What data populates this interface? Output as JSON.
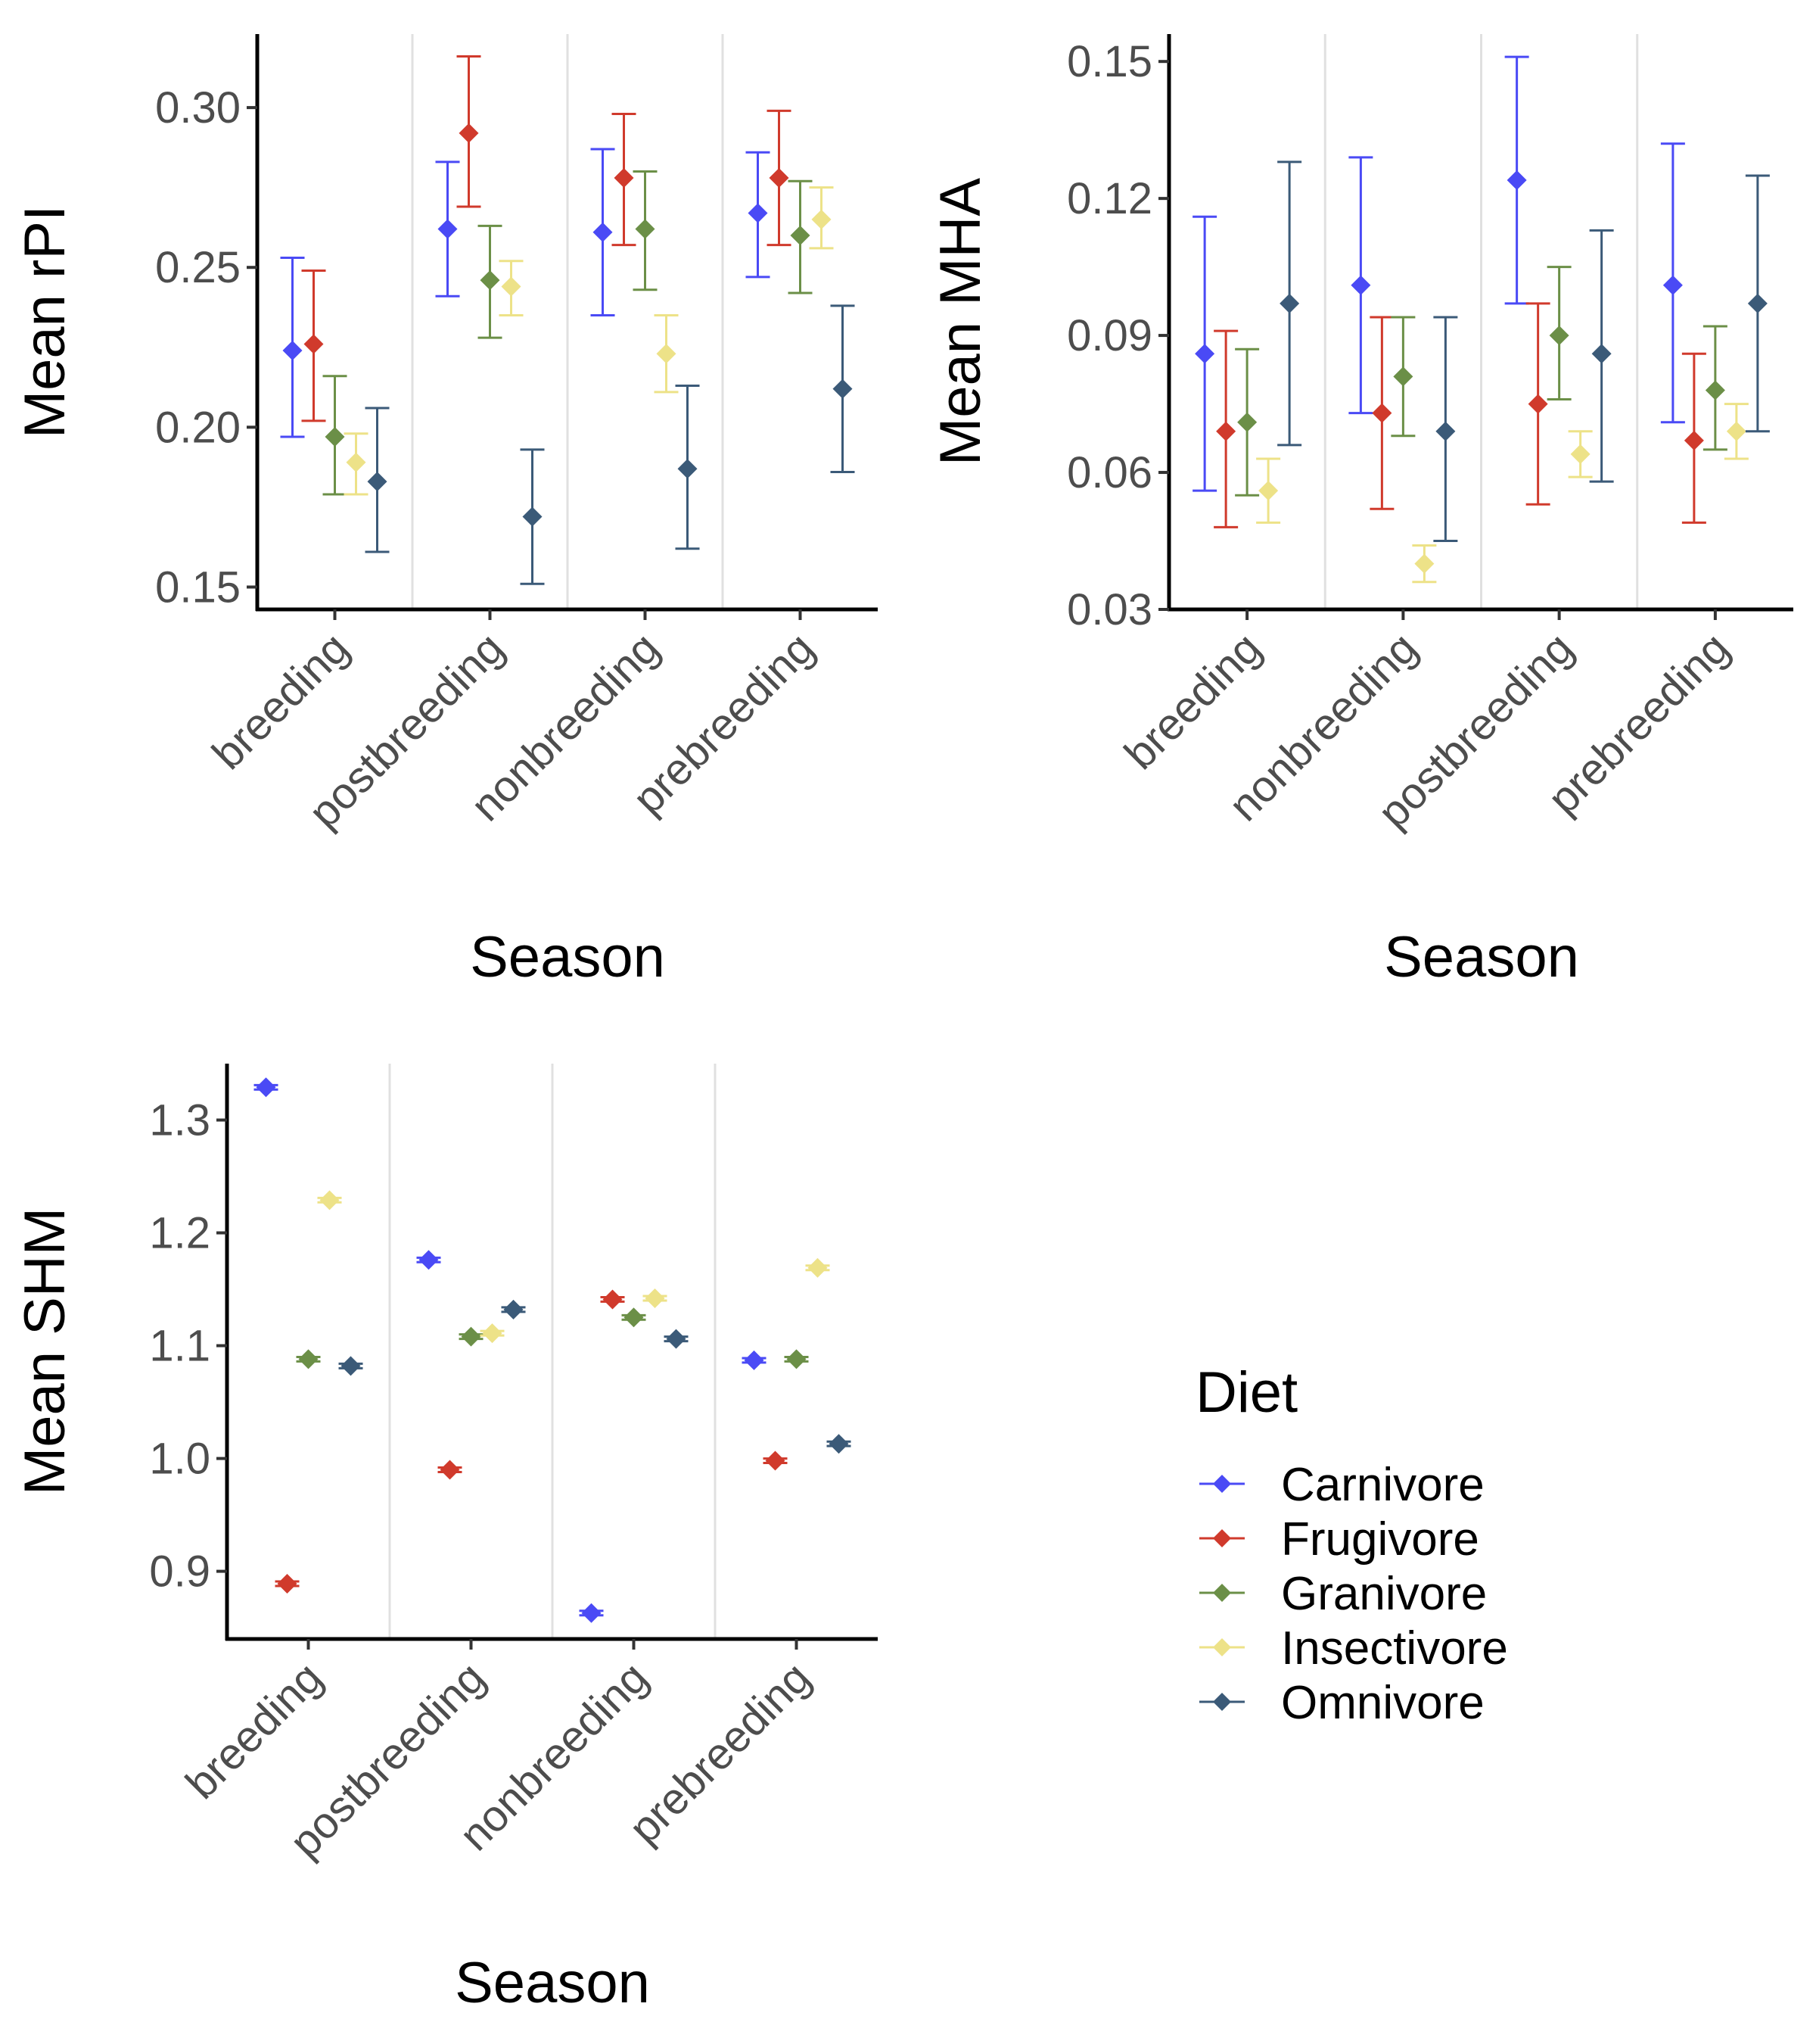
{
  "legend": {
    "title": "Diet",
    "items": [
      {
        "label": "Carnivore",
        "color": "#4a4af5"
      },
      {
        "label": "Frugivore",
        "color": "#d03a2c"
      },
      {
        "label": "Granivore",
        "color": "#6b8f47"
      },
      {
        "label": "Insectivore",
        "color": "#ede288"
      },
      {
        "label": "Omnivore",
        "color": "#3b5a78"
      }
    ]
  },
  "chart_data": [
    {
      "type": "scatter",
      "title": "",
      "xlabel": "Season",
      "ylabel": "Mean rPI",
      "categories": [
        "breeding",
        "postbreeding",
        "nonbreeding",
        "prebreeding"
      ],
      "yticks": [
        "0.15",
        "0.20",
        "0.25",
        "0.30"
      ],
      "ylim": [
        0.143,
        0.323
      ],
      "grid": "vertical separators between seasons",
      "series": [
        {
          "name": "Carnivore",
          "values": [
            0.224,
            0.262,
            0.261,
            0.267
          ],
          "lower": [
            0.197,
            0.241,
            0.235,
            0.247
          ],
          "upper": [
            0.253,
            0.283,
            0.287,
            0.286
          ]
        },
        {
          "name": "Frugivore",
          "values": [
            0.226,
            0.292,
            0.278,
            0.278
          ],
          "lower": [
            0.202,
            0.269,
            0.257,
            0.257
          ],
          "upper": [
            0.249,
            0.316,
            0.298,
            0.299
          ]
        },
        {
          "name": "Granivore",
          "values": [
            0.197,
            0.246,
            0.262,
            0.26
          ],
          "lower": [
            0.179,
            0.228,
            0.243,
            0.242
          ],
          "upper": [
            0.216,
            0.263,
            0.28,
            0.277
          ]
        },
        {
          "name": "Insectivore",
          "values": [
            0.189,
            0.244,
            0.223,
            0.265
          ],
          "lower": [
            0.179,
            0.235,
            0.211,
            0.256
          ],
          "upper": [
            0.198,
            0.252,
            0.235,
            0.275
          ]
        },
        {
          "name": "Omnivore",
          "values": [
            0.183,
            0.172,
            0.187,
            0.212
          ],
          "lower": [
            0.161,
            0.151,
            0.162,
            0.186
          ],
          "upper": [
            0.206,
            0.193,
            0.213,
            0.238
          ]
        }
      ]
    },
    {
      "type": "scatter",
      "title": "",
      "xlabel": "Season",
      "ylabel": "Mean MHA",
      "categories": [
        "breeding",
        "nonbreeding",
        "postbreeding",
        "prebreeding"
      ],
      "yticks": [
        "0.03",
        "0.06",
        "0.09",
        "0.12",
        "0.15"
      ],
      "ylim": [
        0.03,
        0.156
      ],
      "grid": "vertical separators between seasons",
      "series": [
        {
          "name": "Carnivore",
          "values": [
            0.086,
            0.101,
            0.124,
            0.101
          ],
          "lower": [
            0.056,
            0.073,
            0.097,
            0.071
          ],
          "upper": [
            0.116,
            0.129,
            0.151,
            0.132
          ]
        },
        {
          "name": "Frugivore",
          "values": [
            0.069,
            0.073,
            0.075,
            0.067
          ],
          "lower": [
            0.048,
            0.052,
            0.053,
            0.049
          ],
          "upper": [
            0.091,
            0.094,
            0.097,
            0.086
          ]
        },
        {
          "name": "Granivore",
          "values": [
            0.071,
            0.081,
            0.09,
            0.078
          ],
          "lower": [
            0.055,
            0.068,
            0.076,
            0.065
          ],
          "upper": [
            0.087,
            0.094,
            0.105,
            0.092
          ]
        },
        {
          "name": "Insectivore",
          "values": [
            0.056,
            0.04,
            0.064,
            0.069
          ],
          "lower": [
            0.049,
            0.036,
            0.059,
            0.063
          ],
          "upper": [
            0.063,
            0.044,
            0.069,
            0.075
          ]
        },
        {
          "name": "Omnivore",
          "values": [
            0.097,
            0.069,
            0.086,
            0.097
          ],
          "lower": [
            0.066,
            0.045,
            0.058,
            0.069
          ],
          "upper": [
            0.128,
            0.094,
            0.113,
            0.125
          ]
        }
      ]
    },
    {
      "type": "scatter",
      "title": "",
      "xlabel": "Season",
      "ylabel": "Mean SHM",
      "categories": [
        "breeding",
        "postbreeding",
        "nonbreeding",
        "prebreeding"
      ],
      "yticks": [
        "0.9",
        "1.0",
        "1.1",
        "1.2",
        "1.3"
      ],
      "ylim": [
        0.84,
        1.35
      ],
      "grid": "vertical separators between seasons",
      "series": [
        {
          "name": "Carnivore",
          "values": [
            1.329,
            1.176,
            0.863,
            1.087
          ],
          "lower": [
            1.327,
            1.174,
            0.861,
            1.085
          ],
          "upper": [
            1.331,
            1.178,
            0.865,
            1.089
          ]
        },
        {
          "name": "Frugivore",
          "values": [
            0.889,
            0.99,
            1.141,
            0.998
          ],
          "lower": [
            0.887,
            0.988,
            1.139,
            0.996
          ],
          "upper": [
            0.891,
            0.992,
            1.143,
            1.0
          ]
        },
        {
          "name": "Granivore",
          "values": [
            1.088,
            1.108,
            1.125,
            1.088
          ],
          "lower": [
            1.086,
            1.106,
            1.123,
            1.086
          ],
          "upper": [
            1.09,
            1.11,
            1.127,
            1.09
          ]
        },
        {
          "name": "Insectivore",
          "values": [
            1.229,
            1.111,
            1.142,
            1.169
          ],
          "lower": [
            1.227,
            1.109,
            1.14,
            1.167
          ],
          "upper": [
            1.231,
            1.113,
            1.144,
            1.171
          ]
        },
        {
          "name": "Omnivore",
          "values": [
            1.082,
            1.132,
            1.106,
            1.013
          ],
          "lower": [
            1.08,
            1.13,
            1.104,
            1.011
          ],
          "upper": [
            1.084,
            1.134,
            1.108,
            1.015
          ]
        }
      ]
    }
  ]
}
